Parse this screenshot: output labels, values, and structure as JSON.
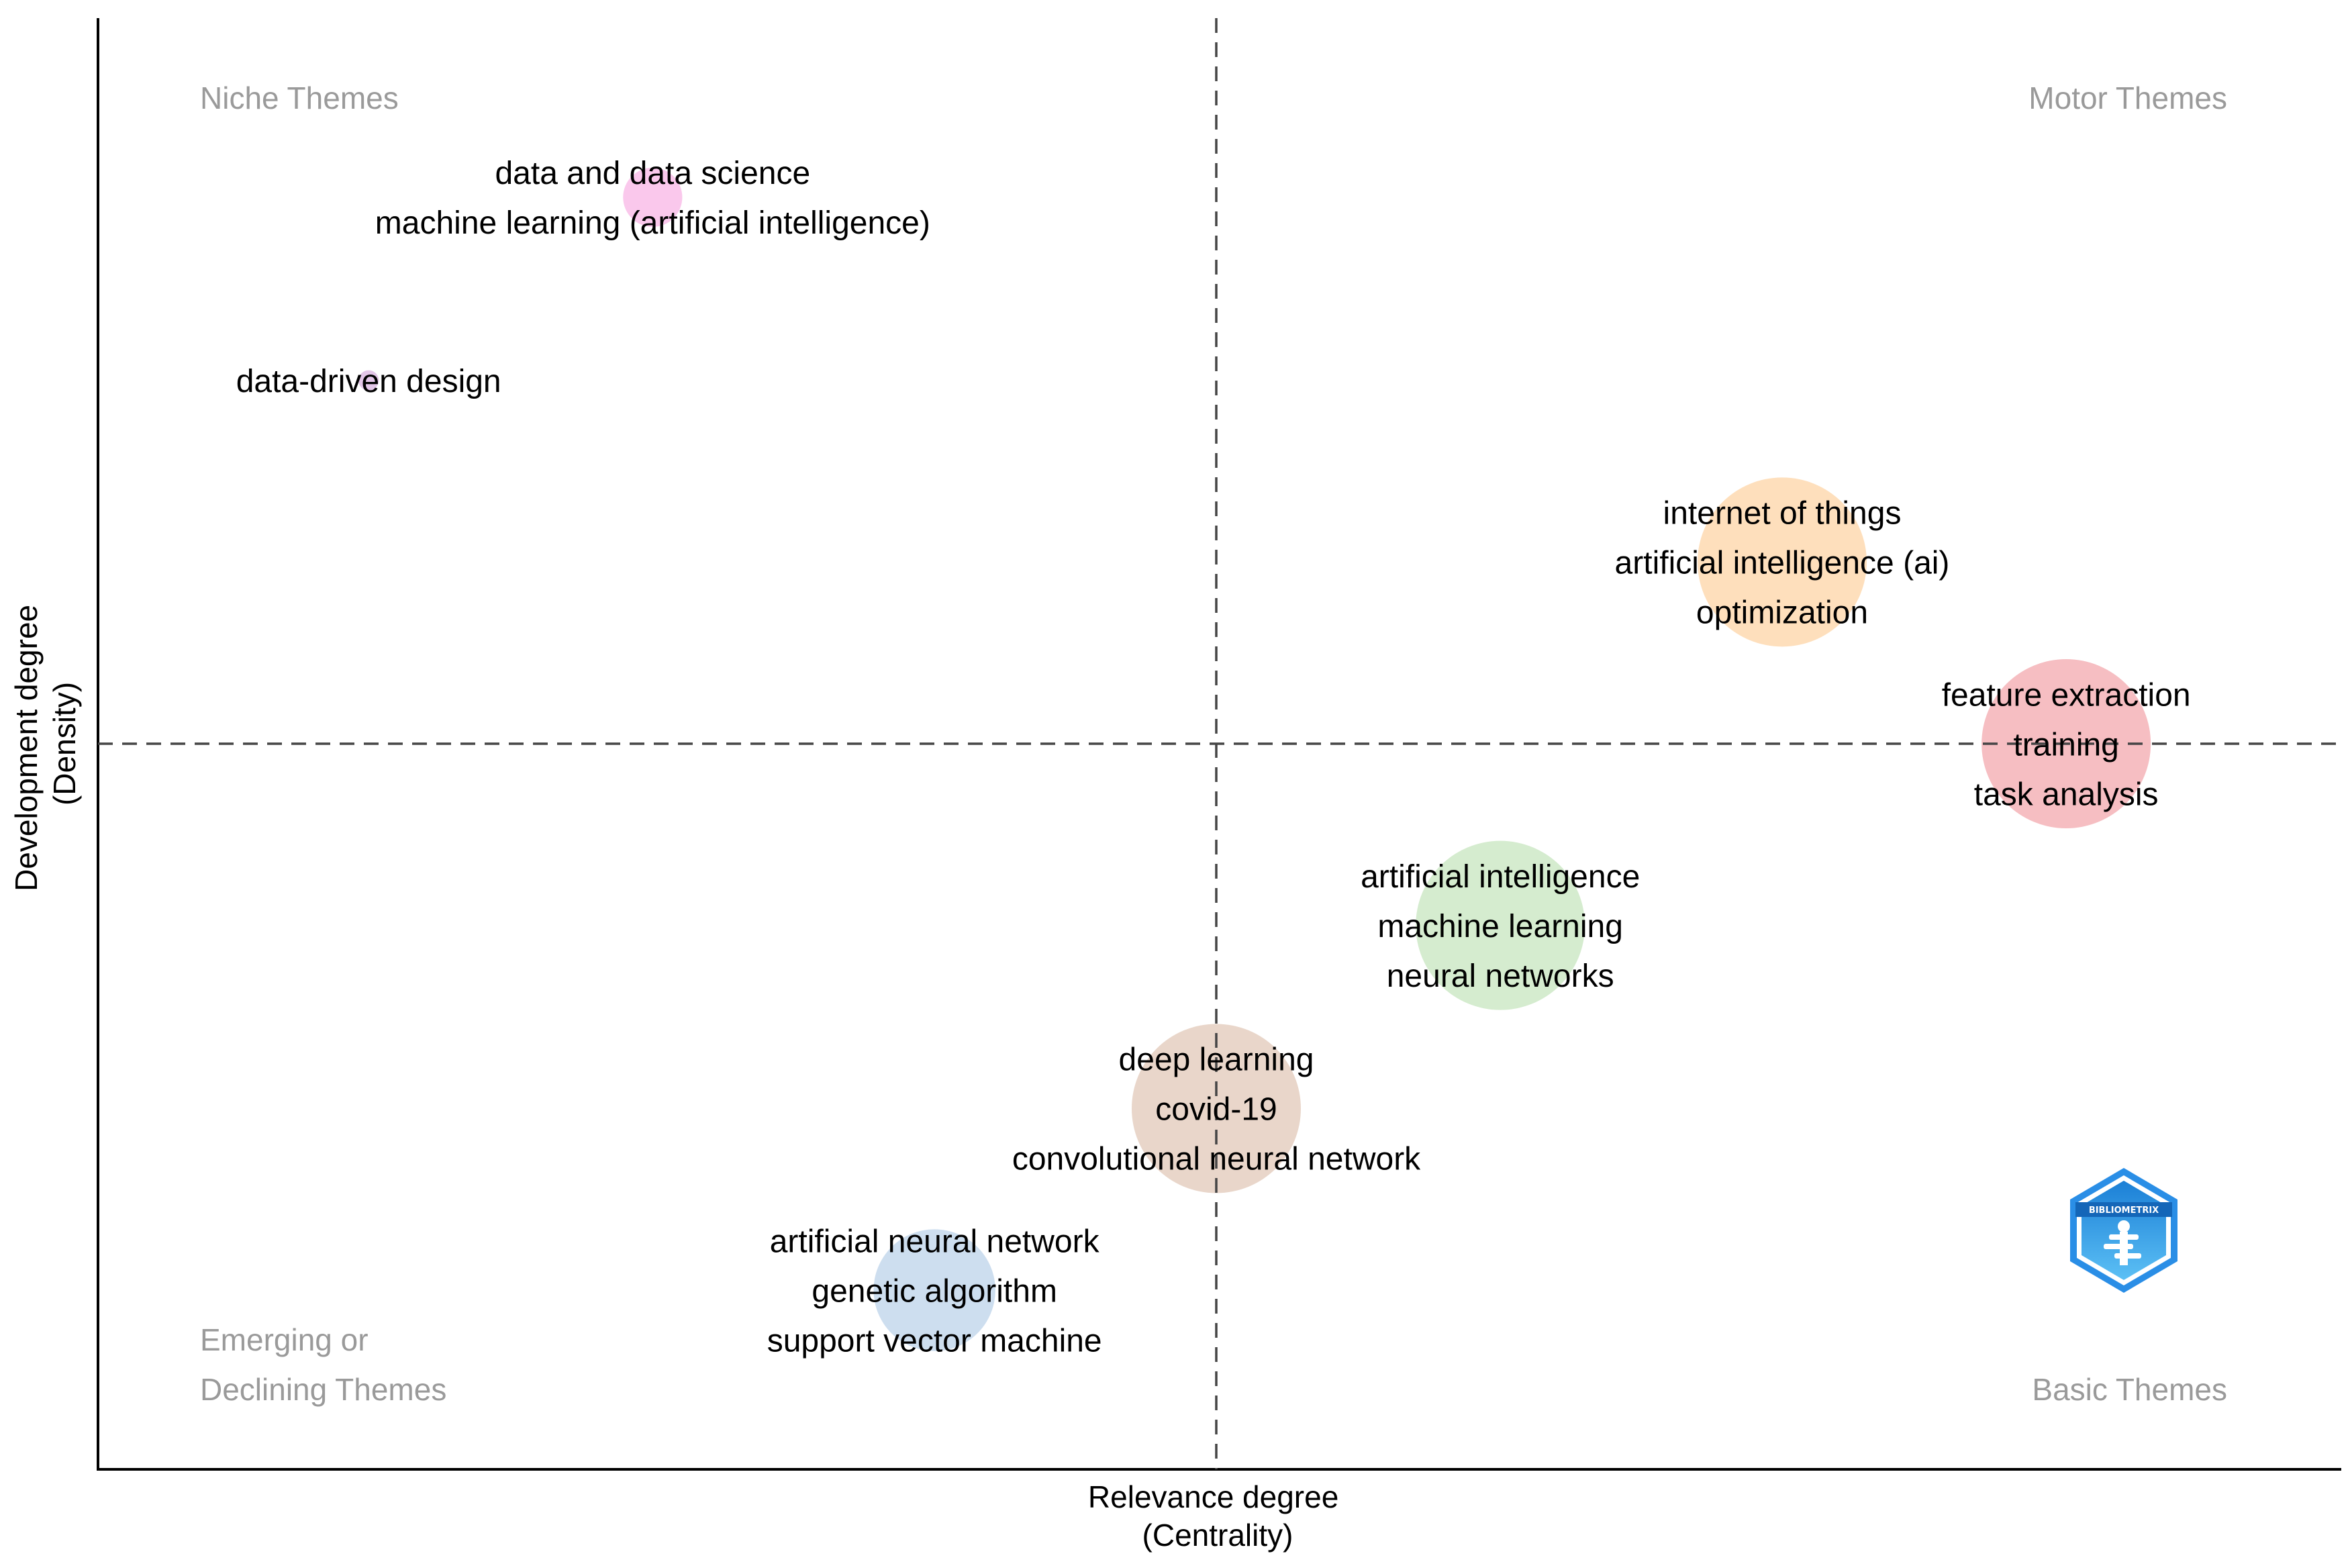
{
  "chart_data": {
    "type": "scatter",
    "title": "",
    "xlabel": [
      "Relevance degree",
      "(Centrality)"
    ],
    "ylabel": [
      "Development degree",
      "(Density)"
    ],
    "xlim": [
      0,
      1
    ],
    "ylim": [
      0,
      1
    ],
    "x_center": 0.5,
    "y_center": 0.5,
    "quadrants": {
      "top_left": [
        "Niche Themes"
      ],
      "top_right": [
        "Motor Themes"
      ],
      "bottom_left": [
        "Emerging or",
        "Declining Themes"
      ],
      "bottom_right": [
        "Basic Themes"
      ]
    },
    "clusters": [
      {
        "name": "cluster-data-science",
        "x": 0.248,
        "y": 0.879,
        "size": 0.35,
        "color": "#f8b5e6",
        "labels": [
          "data and data science",
          "machine learning (artificial intelligence)"
        ]
      },
      {
        "name": "cluster-data-driven",
        "x": 0.121,
        "y": 0.752,
        "size": 0.12,
        "color": "#d9b3e0",
        "labels": [
          "data-driven design"
        ]
      },
      {
        "name": "cluster-iot",
        "x": 0.753,
        "y": 0.626,
        "size": 1.0,
        "color": "#fdd4a6",
        "labels": [
          "internet of things",
          "artificial intelligence (ai)",
          "optimization"
        ]
      },
      {
        "name": "cluster-feature-extraction",
        "x": 0.88,
        "y": 0.5,
        "size": 1.0,
        "color": "#f3a8ae",
        "labels": [
          "feature extraction",
          "training",
          "task analysis"
        ]
      },
      {
        "name": "cluster-ai",
        "x": 0.627,
        "y": 0.374,
        "size": 1.0,
        "color": "#c7e5bf",
        "labels": [
          "artificial intelligence",
          "machine learning",
          "neural networks"
        ]
      },
      {
        "name": "cluster-deep-learning",
        "x": 0.5,
        "y": 0.247,
        "size": 1.0,
        "color": "#e2c8b8",
        "labels": [
          "deep learning",
          "covid-19",
          "convolutional neural network"
        ]
      },
      {
        "name": "cluster-ann",
        "x": 0.374,
        "y": 0.121,
        "size": 0.72,
        "color": "#bcd3ea",
        "labels": [
          "artificial neural network",
          "genetic algorithm",
          "support vector machine"
        ]
      }
    ],
    "logo": {
      "text": "BIBLIOMETRIX",
      "colors": [
        "#1b7fd6",
        "#5cc0f5"
      ]
    }
  }
}
